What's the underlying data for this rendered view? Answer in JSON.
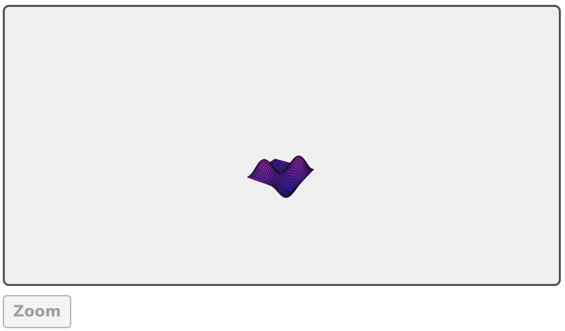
{
  "viewer": {
    "kind": "3d-surface-plot",
    "colors": {
      "frame_border": "#555555",
      "background": "#efeff0",
      "surface_peak": "#c83cdc",
      "surface_mid": "#7a2ad8",
      "surface_trough": "#1a2ae6",
      "mesh_line": "#140a20"
    }
  },
  "controls": {
    "zoom_label": "Zoom"
  }
}
